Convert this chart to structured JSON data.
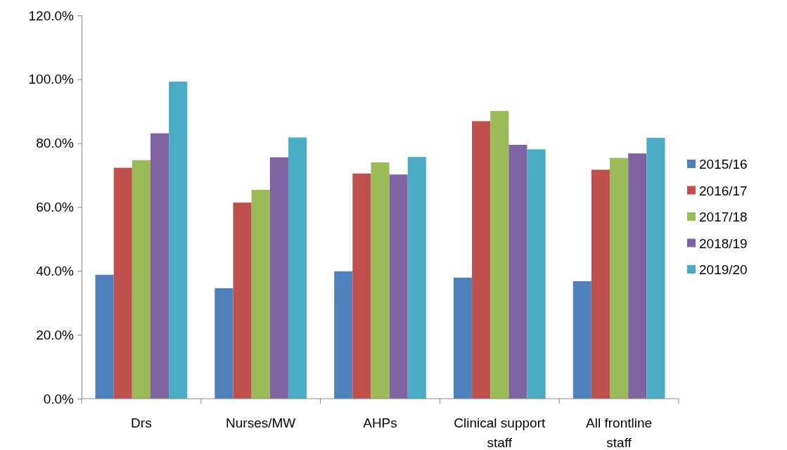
{
  "chart_data": {
    "type": "bar",
    "categories": [
      "Drs",
      "Nurses/MW",
      "AHPs",
      "Clinical support staff",
      "All frontline staff"
    ],
    "series": [
      {
        "name": "2015/16",
        "color": "#4f81bd",
        "values": [
          38.8,
          34.6,
          39.9,
          37.9,
          36.8
        ]
      },
      {
        "name": "2016/17",
        "color": "#c0504d",
        "values": [
          72.3,
          61.4,
          70.5,
          86.9,
          71.7
        ]
      },
      {
        "name": "2017/18",
        "color": "#9bbb59",
        "values": [
          74.7,
          65.4,
          74.0,
          90.1,
          75.4
        ]
      },
      {
        "name": "2018/19",
        "color": "#8064a2",
        "values": [
          83.1,
          75.6,
          70.2,
          79.5,
          76.8
        ]
      },
      {
        "name": "2019/20",
        "color": "#4bacc6",
        "values": [
          99.3,
          81.8,
          75.7,
          78.1,
          81.7
        ]
      }
    ],
    "ylim": [
      0,
      120
    ],
    "yticks": [
      {
        "value": 0,
        "label": "0.0%"
      },
      {
        "value": 20,
        "label": "20.0%"
      },
      {
        "value": 40,
        "label": "40.0%"
      },
      {
        "value": 60,
        "label": "60.0%"
      },
      {
        "value": 80,
        "label": "80.0%"
      },
      {
        "value": 100,
        "label": "100.0%"
      },
      {
        "value": 120,
        "label": "120.0%"
      }
    ],
    "grid": false,
    "legend": "right"
  }
}
